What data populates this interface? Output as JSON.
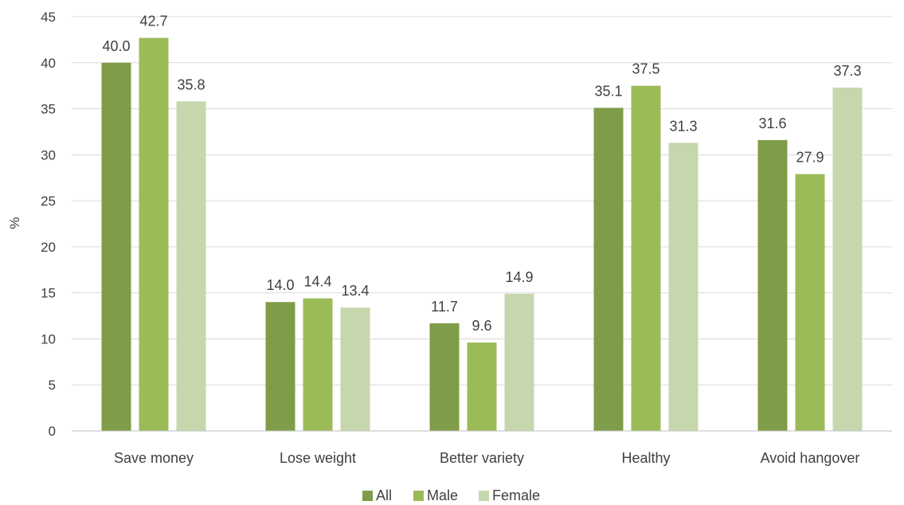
{
  "chart_data": {
    "type": "bar",
    "title": "",
    "xlabel": "",
    "ylabel": "%",
    "ylim": [
      0,
      45
    ],
    "ytick_step": 5,
    "yticks": [
      "0",
      "5",
      "10",
      "15",
      "20",
      "25",
      "30",
      "35",
      "40",
      "45"
    ],
    "grid": true,
    "legend_position": "bottom",
    "categories": [
      "Save money",
      "Lose weight",
      "Better variety",
      "Healthy",
      "Avoid hangover"
    ],
    "series": [
      {
        "name": "All",
        "color": "#7f9c48",
        "values": [
          40.0,
          14.0,
          11.7,
          35.1,
          31.6
        ],
        "labels": [
          "40.0",
          "14.0",
          "11.7",
          "35.1",
          "31.6"
        ]
      },
      {
        "name": "Male",
        "color": "#9bbb59",
        "values": [
          42.7,
          14.4,
          9.6,
          37.5,
          27.9
        ],
        "labels": [
          "42.7",
          "14.4",
          "9.6",
          "37.5",
          "27.9"
        ]
      },
      {
        "name": "Female",
        "color": "#c6d7ae",
        "values": [
          35.8,
          13.4,
          14.9,
          31.3,
          37.3
        ],
        "labels": [
          "35.8",
          "13.4",
          "14.9",
          "31.3",
          "37.3"
        ]
      }
    ]
  }
}
